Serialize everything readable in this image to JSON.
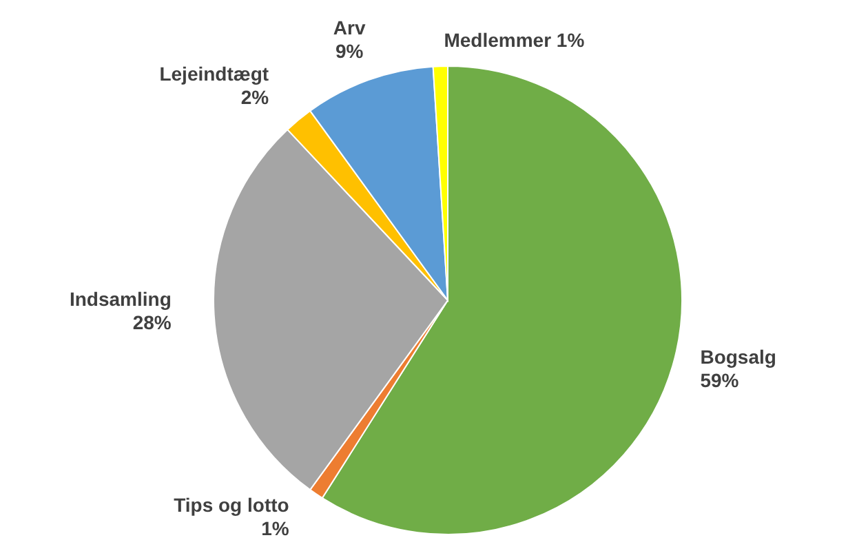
{
  "chart_data": {
    "type": "pie",
    "categories": [
      "Bogsalg",
      "Tips og lotto",
      "Indsamling",
      "Lejeindtægt",
      "Arv",
      "Medlemmer"
    ],
    "values": [
      59,
      1,
      28,
      2,
      9,
      1
    ],
    "value_labels": [
      "59%",
      "1%",
      "28%",
      "2%",
      "9%",
      "1%"
    ],
    "colors": [
      "#70ad47",
      "#ed7d31",
      "#a5a5a5",
      "#ffc000",
      "#5b9bd5",
      "#ffff00"
    ]
  }
}
